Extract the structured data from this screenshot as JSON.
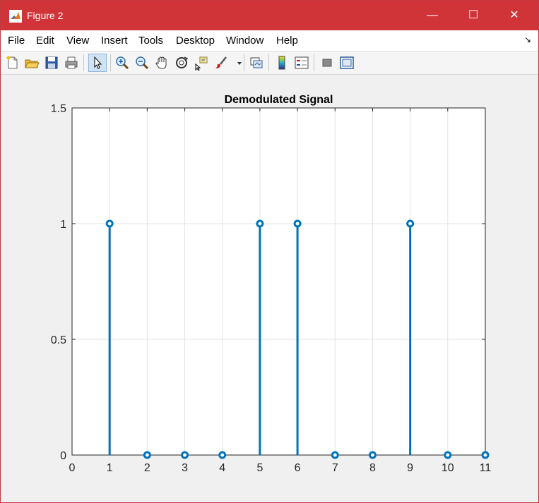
{
  "window": {
    "title": "Figure 2",
    "minimize_glyph": "—",
    "maximize_glyph": "☐",
    "close_glyph": "✕",
    "titlebar_color": "#d13438"
  },
  "menu": {
    "items": [
      "File",
      "Edit",
      "View",
      "Insert",
      "Tools",
      "Desktop",
      "Window",
      "Help"
    ],
    "overflow_glyph": "↘"
  },
  "toolbar": {
    "buttons": [
      "new-figure-icon",
      "open-file-icon",
      "save-icon",
      "print-icon",
      "pointer-icon",
      "zoom-in-icon",
      "zoom-out-icon",
      "pan-icon",
      "rotate-3d-icon",
      "data-cursor-icon",
      "brush-icon",
      "brush-dropdown-icon",
      "link-plot-icon",
      "colorbar-icon",
      "legend-icon",
      "hide-plot-tools-icon",
      "show-plot-tools-icon"
    ]
  },
  "chart_data": {
    "type": "stem",
    "title": "Demodulated Signal",
    "xlabel": "",
    "ylabel": "",
    "x": [
      1,
      2,
      3,
      4,
      5,
      6,
      7,
      8,
      9,
      10,
      11
    ],
    "values": [
      1,
      0,
      0,
      0,
      1,
      1,
      0,
      0,
      1,
      0,
      0
    ],
    "xlim": [
      0,
      11
    ],
    "ylim": [
      0,
      1.5
    ],
    "xticks": [
      0,
      1,
      2,
      3,
      4,
      5,
      6,
      7,
      8,
      9,
      10,
      11
    ],
    "yticks": [
      0,
      0.5,
      1,
      1.5
    ],
    "xtick_labels": [
      "0",
      "1",
      "2",
      "3",
      "4",
      "5",
      "6",
      "7",
      "8",
      "9",
      "10",
      "11"
    ],
    "ytick_labels": [
      "0",
      "0.5",
      "1",
      "1.5"
    ],
    "grid": true,
    "marker": "circle",
    "color": "#0072bd"
  }
}
